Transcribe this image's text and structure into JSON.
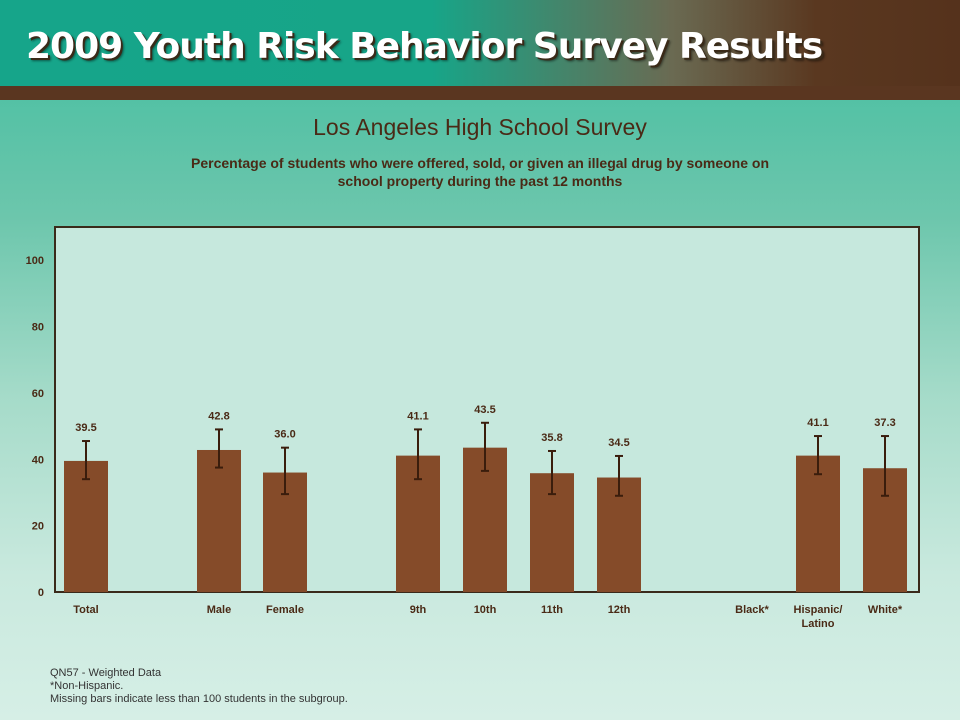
{
  "banner": {
    "title": "2009 Youth Risk Behavior Survey Results"
  },
  "chart_data": {
    "type": "bar",
    "title": "Los Angeles High School Survey",
    "subtitle": "Percentage of students who were offered, sold, or given an illegal drug by someone on school property during the past 12 months",
    "categories": [
      "Total",
      "Male",
      "Female",
      "9th",
      "10th",
      "11th",
      "12th",
      "Black*",
      "Hispanic/ Latino",
      "White*"
    ],
    "values": [
      39.5,
      42.8,
      36.0,
      41.1,
      43.5,
      35.8,
      34.5,
      null,
      41.1,
      37.3
    ],
    "data_labels": [
      "39.5",
      "42.8",
      "36.0",
      "41.1",
      "43.5",
      "35.8",
      "34.5",
      "",
      "41.1",
      "37.3"
    ],
    "ci_low": [
      34.0,
      37.5,
      29.5,
      34.0,
      36.5,
      29.5,
      29.0,
      null,
      35.5,
      29.0
    ],
    "ci_high": [
      45.5,
      49.0,
      43.5,
      49.0,
      51.0,
      42.5,
      41.0,
      null,
      47.0,
      47.0
    ],
    "yticks": [
      0,
      20,
      40,
      60,
      80,
      100
    ],
    "ylim": [
      0,
      110
    ],
    "xlabel": "",
    "ylabel": "",
    "grid": false,
    "colors": {
      "bar": "#854b29",
      "error": "#3a1d0c",
      "plot_bg": "#c6e8dd",
      "frame": "#3a2a1a",
      "text": "#4a2a16"
    }
  },
  "footnotes": [
    "QN57 - Weighted Data",
    "*Non-Hispanic.",
    "Missing bars indicate less than 100 students in the subgroup."
  ]
}
